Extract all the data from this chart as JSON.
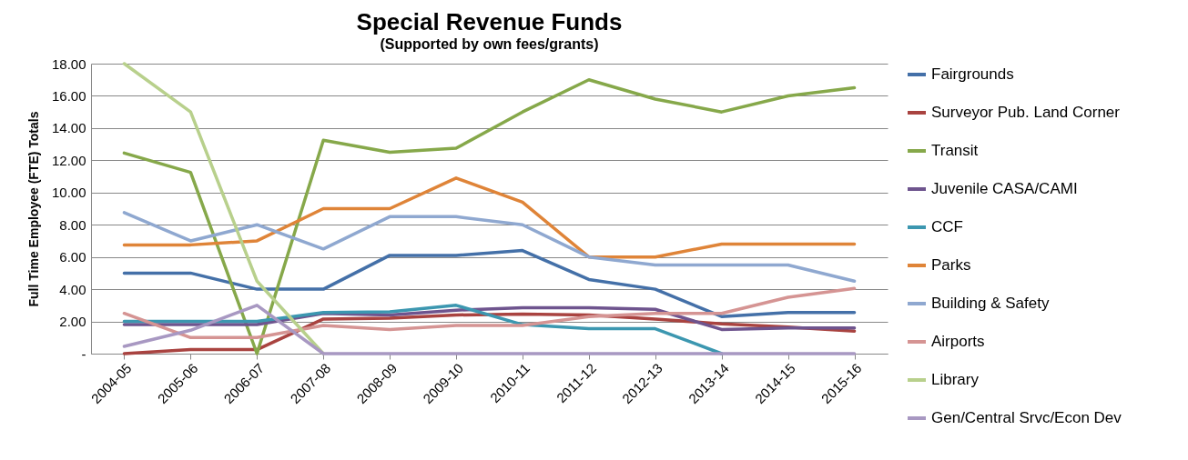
{
  "chart_data": {
    "type": "line",
    "title": "Special Revenue Funds",
    "subtitle": "(Supported by own fees/grants)",
    "ylabel": "Full Time Employee (FTE) Totals",
    "categories": [
      "2004-05",
      "2005-06",
      "2006-07",
      "2007-08",
      "2008-09",
      "2009-10",
      "2010-11",
      "2011-12",
      "2012-13",
      "2013-14",
      "2014-15",
      "2015-16"
    ],
    "ylim": [
      0,
      18
    ],
    "yticks": [
      {
        "value": 0,
        "label": "-"
      },
      {
        "value": 2,
        "label": "2.00"
      },
      {
        "value": 4,
        "label": "4.00"
      },
      {
        "value": 6,
        "label": "6.00"
      },
      {
        "value": 8,
        "label": "8.00"
      },
      {
        "value": 10,
        "label": "10.00"
      },
      {
        "value": 12,
        "label": "12.00"
      },
      {
        "value": 14,
        "label": "14.00"
      },
      {
        "value": 16,
        "label": "16.00"
      },
      {
        "value": 18,
        "label": "18.00"
      }
    ],
    "grid": "y",
    "legend": "right",
    "line_style": "solid",
    "marker": "none",
    "series": [
      {
        "name": "Fairgrounds",
        "color": "#4470a8",
        "values": [
          5,
          5,
          4,
          4,
          6.1,
          6.1,
          6.4,
          4.6,
          4,
          2.3,
          2.55,
          2.55
        ]
      },
      {
        "name": "Surveyor Pub. Land Corner",
        "color": "#a94340",
        "values": [
          0,
          0.25,
          0.25,
          2.15,
          2.2,
          2.4,
          2.45,
          2.4,
          2.15,
          1.85,
          1.65,
          1.4
        ]
      },
      {
        "name": "Transit",
        "color": "#86a84a",
        "values": [
          12.45,
          11.25,
          0,
          13.25,
          12.5,
          12.75,
          15,
          17,
          15.8,
          15,
          16,
          16.5
        ]
      },
      {
        "name": "Juvenile CASA/CAMI",
        "color": "#6e548e",
        "values": [
          1.8,
          1.8,
          1.8,
          2.5,
          2.4,
          2.7,
          2.85,
          2.85,
          2.75,
          1.5,
          1.6,
          1.6
        ]
      },
      {
        "name": "CCF",
        "color": "#3c97b0",
        "values": [
          2,
          2,
          2,
          2.55,
          2.6,
          3,
          1.8,
          1.55,
          1.55,
          0,
          null,
          null
        ]
      },
      {
        "name": "Parks",
        "color": "#df8438",
        "values": [
          6.75,
          6.75,
          7,
          9,
          9,
          10.9,
          9.4,
          6,
          6,
          6.8,
          6.8,
          6.8
        ]
      },
      {
        "name": "Building & Safety",
        "color": "#8fa8d0",
        "values": [
          8.75,
          7,
          8,
          6.5,
          8.5,
          8.5,
          8,
          6,
          5.5,
          5.5,
          5.5,
          4.5
        ]
      },
      {
        "name": "Airports",
        "color": "#d59493",
        "values": [
          2.5,
          1,
          1,
          1.75,
          1.5,
          1.75,
          1.75,
          2.3,
          2.5,
          2.5,
          3.5,
          4.05
        ]
      },
      {
        "name": "Library",
        "color": "#b8d08c",
        "values": [
          18,
          15,
          4.5,
          0,
          null,
          null,
          null,
          null,
          null,
          null,
          null,
          null
        ]
      },
      {
        "name": "Gen/Central Srvc/Econ Dev",
        "color": "#a898c2",
        "values": [
          0.45,
          1.45,
          3,
          0,
          0,
          0,
          0,
          0,
          0,
          0,
          0,
          0
        ]
      }
    ]
  }
}
